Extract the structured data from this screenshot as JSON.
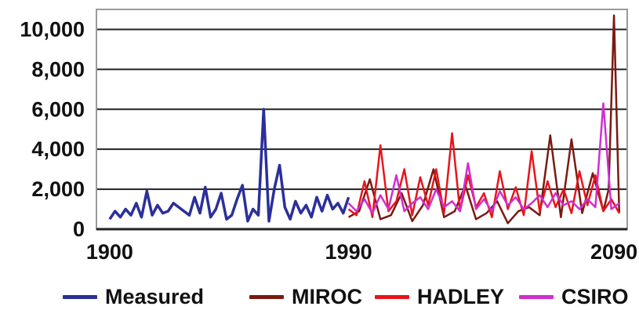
{
  "chart_data": {
    "type": "line",
    "title": "",
    "xlabel": "",
    "ylabel": "",
    "xlim": [
      1895,
      2095
    ],
    "ylim": [
      0,
      11000
    ],
    "x_ticks": [
      1900,
      1990,
      2090
    ],
    "x_tick_labels": [
      "1900",
      "1990",
      "2090"
    ],
    "y_ticks": [
      0,
      2000,
      4000,
      6000,
      8000,
      10000
    ],
    "y_tick_labels": [
      "0",
      "2,000",
      "4,000",
      "6,000",
      "8,000",
      "10,000"
    ],
    "grid": "horizontal",
    "legend_position": "bottom",
    "series": [
      {
        "name": "Measured",
        "color": "#2b2f9a",
        "x": [
          1900,
          1902,
          1904,
          1906,
          1908,
          1910,
          1912,
          1914,
          1916,
          1918,
          1920,
          1922,
          1924,
          1926,
          1928,
          1930,
          1932,
          1934,
          1936,
          1938,
          1940,
          1942,
          1944,
          1946,
          1948,
          1950,
          1952,
          1954,
          1956,
          1958,
          1960,
          1962,
          1964,
          1966,
          1968,
          1970,
          1972,
          1974,
          1976,
          1978,
          1980,
          1982,
          1984,
          1986,
          1988,
          1990
        ],
        "values": [
          500,
          900,
          600,
          1000,
          700,
          1300,
          600,
          1900,
          700,
          1200,
          800,
          900,
          1300,
          1100,
          900,
          700,
          1600,
          800,
          2100,
          600,
          1000,
          1800,
          500,
          700,
          1500,
          2200,
          400,
          1000,
          700,
          6000,
          400,
          2000,
          3200,
          1100,
          500,
          1400,
          800,
          1200,
          600,
          1600,
          900,
          1700,
          1000,
          1300,
          800,
          1600
        ]
      },
      {
        "name": "MIROC",
        "color": "#7a1a12",
        "x": [
          1990,
          1994,
          1998,
          2002,
          2006,
          2010,
          2014,
          2018,
          2022,
          2026,
          2030,
          2034,
          2038,
          2042,
          2046,
          2050,
          2054,
          2058,
          2062,
          2066,
          2070,
          2074,
          2078,
          2082,
          2086,
          2088,
          2090,
          2092
        ],
        "values": [
          600,
          900,
          2500,
          500,
          700,
          1800,
          400,
          1200,
          3000,
          600,
          900,
          2200,
          500,
          800,
          1400,
          300,
          900,
          1100,
          700,
          4700,
          600,
          4500,
          800,
          2800,
          900,
          2000,
          10700,
          800
        ]
      },
      {
        "name": "HADLEY",
        "color": "#e8141c",
        "x": [
          1990,
          1993,
          1996,
          1999,
          2002,
          2005,
          2008,
          2011,
          2014,
          2017,
          2020,
          2023,
          2026,
          2029,
          2032,
          2035,
          2038,
          2041,
          2044,
          2047,
          2050,
          2053,
          2056,
          2059,
          2062,
          2065,
          2068,
          2071,
          2074,
          2077,
          2080,
          2083,
          2086,
          2089,
          2092
        ],
        "values": [
          1000,
          700,
          2400,
          600,
          4200,
          900,
          1400,
          3000,
          700,
          2600,
          1200,
          3000,
          800,
          4800,
          900,
          2700,
          1100,
          1800,
          600,
          2900,
          1000,
          2100,
          700,
          3900,
          900,
          2400,
          1100,
          2000,
          800,
          2900,
          1200,
          2700,
          900,
          1500,
          800
        ]
      },
      {
        "name": "CSIRO",
        "color": "#d12ecf",
        "x": [
          1990,
          1993,
          1996,
          1999,
          2002,
          2005,
          2008,
          2011,
          2014,
          2017,
          2020,
          2023,
          2026,
          2029,
          2032,
          2035,
          2038,
          2041,
          2044,
          2047,
          2050,
          2053,
          2056,
          2059,
          2062,
          2065,
          2068,
          2071,
          2074,
          2077,
          2080,
          2083,
          2086,
          2089,
          2092
        ],
        "values": [
          1300,
          900,
          1500,
          800,
          1700,
          1000,
          2700,
          900,
          1300,
          1600,
          1000,
          2000,
          1100,
          1400,
          900,
          3300,
          1000,
          1500,
          900,
          1900,
          1200,
          1600,
          1000,
          1300,
          1700,
          1100,
          1800,
          1200,
          1400,
          1000,
          1500,
          1100,
          6300,
          1000,
          1300
        ]
      }
    ]
  }
}
